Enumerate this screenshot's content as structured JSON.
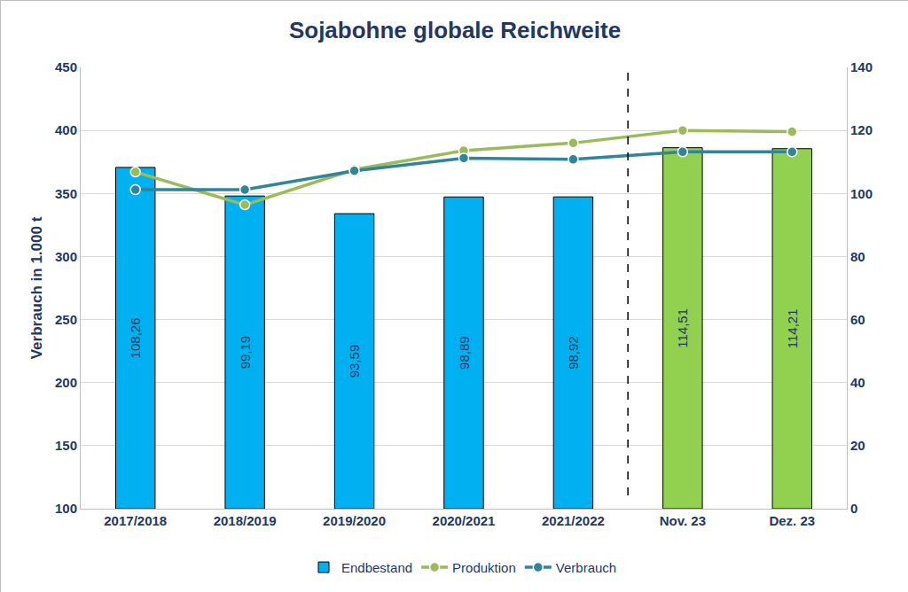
{
  "chart_data": {
    "type": "bar",
    "title": "Sojabohne globale Reichweite",
    "ylabel": "Verbrauch in 1.000 t",
    "categories": [
      "2017/2018",
      "2018/2019",
      "2019/2020",
      "2020/2021",
      "2021/2022",
      "Nov. 23",
      "Dez. 23"
    ],
    "ylim": [
      100,
      450
    ],
    "yticks": [
      100,
      150,
      200,
      250,
      300,
      350,
      400,
      450
    ],
    "y2lim": [
      0,
      140
    ],
    "y2ticks": [
      0,
      20,
      40,
      60,
      80,
      100,
      120,
      140
    ],
    "grid": true,
    "legend": "bottom",
    "data_labels": true,
    "series": [
      {
        "name": "Endbestand",
        "type": "bar",
        "axis": "y2",
        "colors": [
          "#00b0f0",
          "#00b0f0",
          "#00b0f0",
          "#00b0f0",
          "#00b0f0",
          "#92d050",
          "#92d050"
        ],
        "values": [
          108.26,
          99.19,
          93.59,
          98.89,
          98.92,
          114.51,
          114.21
        ],
        "value_labels": [
          "108,26",
          "99,19",
          "93,59",
          "98,89",
          "98,92",
          "114,51",
          "114,21"
        ]
      },
      {
        "name": "Produktion",
        "type": "line",
        "axis": "y",
        "color": "#9bbb59",
        "marker": "circle",
        "values": [
          367,
          341,
          369,
          384,
          390,
          400,
          399
        ]
      },
      {
        "name": "Verbrauch",
        "type": "line",
        "axis": "y",
        "color": "#31849b",
        "marker": "circle",
        "values": [
          353,
          353,
          368,
          378,
          377,
          383,
          383
        ]
      }
    ]
  }
}
